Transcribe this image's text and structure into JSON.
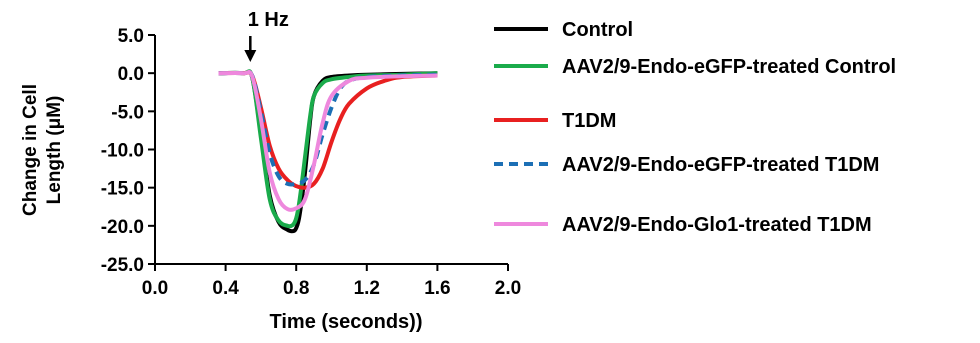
{
  "chart_data": {
    "type": "line",
    "title": "",
    "xlabel": "Time (seconds))",
    "ylabel": "Change in Cell Length (μM)",
    "ylabel_lines": [
      "Change in Cell",
      "Length (μM)"
    ],
    "xlim": [
      0.0,
      2.0
    ],
    "ylim": [
      -25.0,
      5.0
    ],
    "xticks": [
      0.0,
      0.4,
      0.8,
      1.2,
      1.6,
      2.0
    ],
    "xtick_labels": [
      "0.0",
      "0.4",
      "0.8",
      "1.2",
      "1.6",
      "2.0"
    ],
    "yticks": [
      5.0,
      0.0,
      -5.0,
      -10.0,
      -15.0,
      -20.0,
      -25.0
    ],
    "ytick_labels": [
      "5.0",
      "0.0",
      "-5.0",
      "-10.0",
      "-15.0",
      "-20.0",
      "-25.0"
    ],
    "grid": false,
    "legend_position": "right",
    "annotation": {
      "text": "1 Hz",
      "x": 0.54
    },
    "series": [
      {
        "name": "Control",
        "color": "#000000",
        "dash": "solid",
        "x": [
          0.36,
          0.5,
          0.55,
          0.6,
          0.65,
          0.7,
          0.75,
          0.78,
          0.8,
          0.82,
          0.85,
          0.88,
          0.9,
          0.95,
          1.0,
          1.1,
          1.2,
          1.4,
          1.6
        ],
        "y": [
          0.0,
          0.0,
          -0.5,
          -8.0,
          -16.0,
          -19.5,
          -20.5,
          -20.7,
          -20.3,
          -18.5,
          -13.0,
          -6.0,
          -3.0,
          -1.0,
          -0.5,
          -0.3,
          -0.2,
          -0.1,
          0.0
        ]
      },
      {
        "name": "AAV2/9-Endo-eGFP-treated Control",
        "color": "#1aab4b",
        "dash": "solid",
        "x": [
          0.36,
          0.5,
          0.55,
          0.6,
          0.65,
          0.7,
          0.75,
          0.78,
          0.8,
          0.82,
          0.85,
          0.88,
          0.9,
          0.95,
          1.0,
          1.1,
          1.2,
          1.4,
          1.6
        ],
        "y": [
          0.0,
          0.0,
          -0.5,
          -8.5,
          -16.5,
          -19.3,
          -20.0,
          -19.9,
          -19.0,
          -16.5,
          -11.0,
          -5.5,
          -3.0,
          -1.3,
          -0.8,
          -0.5,
          -0.3,
          -0.2,
          0.0
        ]
      },
      {
        "name": "T1DM",
        "color": "#e82020",
        "dash": "solid",
        "x": [
          0.36,
          0.5,
          0.55,
          0.6,
          0.65,
          0.7,
          0.75,
          0.8,
          0.85,
          0.9,
          0.95,
          1.0,
          1.05,
          1.1,
          1.2,
          1.3,
          1.4,
          1.6
        ],
        "y": [
          0.0,
          0.0,
          -0.3,
          -4.5,
          -9.5,
          -12.5,
          -14.0,
          -14.8,
          -15.0,
          -14.5,
          -12.5,
          -9.0,
          -6.0,
          -4.0,
          -2.0,
          -1.0,
          -0.5,
          -0.3
        ]
      },
      {
        "name": "AAV2/9-Endo-eGFP-treated T1DM",
        "color": "#1c6fb5",
        "dash": "dashed",
        "x": [
          0.36,
          0.5,
          0.55,
          0.6,
          0.65,
          0.7,
          0.75,
          0.8,
          0.85,
          0.9,
          0.95,
          1.0,
          1.05,
          1.1,
          1.2,
          1.4,
          1.6
        ],
        "y": [
          0.0,
          0.0,
          -0.3,
          -5.0,
          -10.5,
          -13.5,
          -14.5,
          -14.5,
          -14.0,
          -12.0,
          -8.0,
          -4.5,
          -2.0,
          -1.0,
          -0.5,
          -0.3,
          -0.2
        ]
      },
      {
        "name": "AAV2/9-Endo-Glo1-treated T1DM",
        "color": "#ee88dd",
        "dash": "solid",
        "x": [
          0.36,
          0.5,
          0.55,
          0.6,
          0.65,
          0.7,
          0.75,
          0.8,
          0.85,
          0.9,
          0.95,
          1.0,
          1.1,
          1.2,
          1.4,
          1.6
        ],
        "y": [
          0.0,
          0.0,
          -0.4,
          -6.0,
          -13.0,
          -16.5,
          -17.8,
          -17.7,
          -16.5,
          -12.0,
          -6.5,
          -3.0,
          -1.0,
          -0.6,
          -0.4,
          -0.3
        ]
      }
    ]
  }
}
